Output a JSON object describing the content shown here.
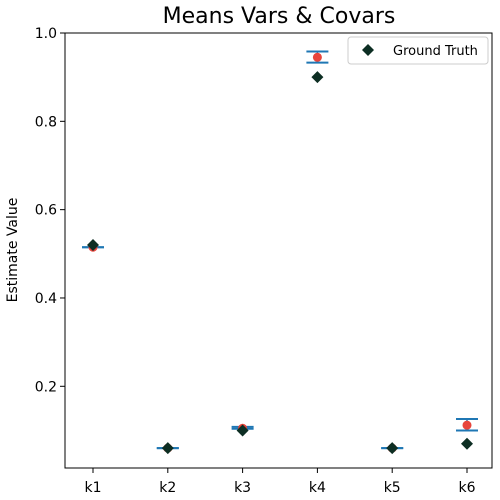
{
  "chart_data": {
    "type": "scatter",
    "title": "Means Vars & Covars",
    "xlabel": "",
    "ylabel": "Estimate Value",
    "categories": [
      "k1",
      "k2",
      "k3",
      "k4",
      "k5",
      "k6"
    ],
    "ylim": [
      0.015,
      1.0
    ],
    "yticks": [
      0.2,
      0.4,
      0.6,
      0.8,
      1.0
    ],
    "ytick_labels": [
      "0.2",
      "0.4",
      "0.6",
      "0.8",
      "1.0"
    ],
    "grid": false,
    "legend_position": "top-right",
    "series": [
      {
        "name": "Ground Truth",
        "marker": "diamond",
        "color": "#0d2e23",
        "values": [
          0.52,
          0.06,
          0.1,
          0.9,
          0.06,
          0.07
        ]
      },
      {
        "marker": "circle",
        "color": "#e8453c",
        "values": [
          0.515,
          0.06,
          0.105,
          0.945,
          0.06,
          0.112
        ]
      },
      {
        "marker": "errorbar",
        "color": "#1f77b4",
        "lower": [
          0.515,
          0.06,
          0.104,
          0.933,
          0.06,
          0.1
        ],
        "upper": [
          0.515,
          0.06,
          0.108,
          0.958,
          0.06,
          0.126
        ]
      }
    ]
  }
}
